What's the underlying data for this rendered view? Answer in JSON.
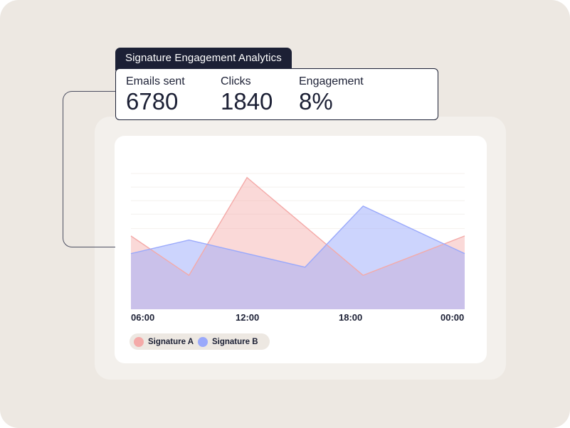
{
  "header": {
    "title": "Signature Engagement Analytics"
  },
  "stats": [
    {
      "label": "Emails sent",
      "value": "6780"
    },
    {
      "label": "Clicks",
      "value": "1840"
    },
    {
      "label": "Engagement",
      "value": "8%"
    }
  ],
  "chart_data": {
    "type": "area",
    "title": "",
    "xlabel": "",
    "ylabel": "",
    "x_ticks": [
      {
        "label": "06:00",
        "x": 6
      },
      {
        "label": "12:00",
        "x": 12
      },
      {
        "label": "18:00",
        "x": 18
      },
      {
        "label": "00:00",
        "x": 23.25
      }
    ],
    "xlim": [
      6,
      23.25
    ],
    "ylim": [
      0,
      100
    ],
    "grid": true,
    "series": [
      {
        "name": "Signature A",
        "color": "#f4aaa8",
        "x": [
          6,
          9,
          12,
          18,
          23.25
        ],
        "values": [
          54,
          25,
          97,
          25,
          54
        ]
      },
      {
        "name": "Signature B",
        "color": "#9aa9fb",
        "x": [
          6,
          9,
          15,
          18,
          23.25
        ],
        "values": [
          41,
          51,
          31,
          76,
          41
        ]
      }
    ],
    "legend": {
      "placement": "bottom-left"
    }
  }
}
